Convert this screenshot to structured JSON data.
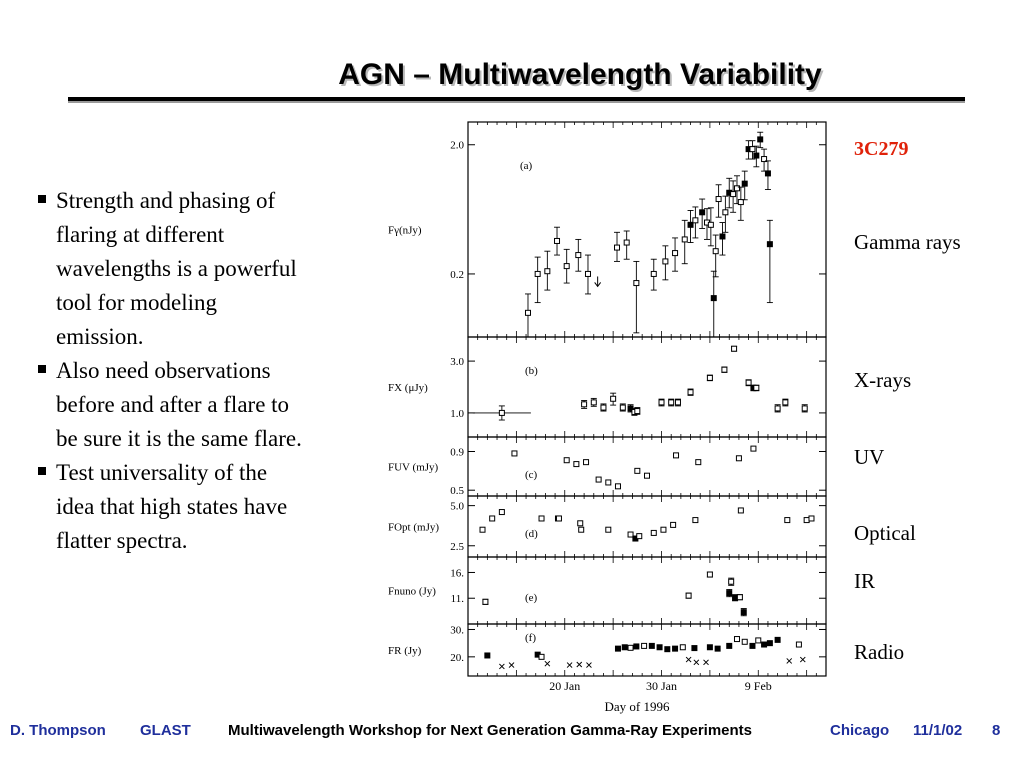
{
  "slide": {
    "title": "AGN – Multiwavelength Variability"
  },
  "bullets": [
    "Strength and phasing of flaring at different wavelengths is a powerful tool for modeling emission.",
    "Also need observations before and after a flare to be sure it is the same flare.",
    "Test universality of the idea that high states have flatter spectra."
  ],
  "side_labels": {
    "source": "3C279",
    "gamma": "Gamma rays",
    "xray": "X-rays",
    "uv": "UV",
    "optical": "Optical",
    "ir": "IR",
    "radio": "Radio"
  },
  "footer": {
    "author": "D. Thompson",
    "mission": "GLAST",
    "workshop": "Multiwavelength Workshop for Next Generation Gamma-Ray Experiments",
    "place": "Chicago",
    "date": "11/1/02",
    "page": "8"
  },
  "colors": {
    "source_label": "#e0220a",
    "footer_blue": "#1f2f9c",
    "title_shadow": "#b8b8b8"
  },
  "chart_data": {
    "type": "scatter",
    "xlabel": "Day of 1996",
    "x_range": [
      10,
      47
    ],
    "x_ticks": [
      {
        "x": 20,
        "label": "20 Jan"
      },
      {
        "x": 30,
        "label": "30 Jan"
      },
      {
        "x": 40,
        "label": "9 Feb"
      }
    ],
    "panels": [
      {
        "id": "a",
        "tag": "(a)",
        "ylabel": "Fγ(nJy)",
        "log": true,
        "ylim": [
          0.065,
          3.0
        ],
        "yticks": [
          {
            "v": 2.0,
            "label": "2.0"
          },
          {
            "v": 0.2,
            "label": "0.2"
          }
        ],
        "points": [
          {
            "x": 16.2,
            "y": 0.1,
            "lo": 0.065,
            "hi": 0.14,
            "f": false
          },
          {
            "x": 17.2,
            "y": 0.2,
            "lo": 0.12,
            "hi": 0.27,
            "f": false
          },
          {
            "x": 18.2,
            "y": 0.21,
            "lo": 0.15,
            "hi": 0.3,
            "f": false
          },
          {
            "x": 19.2,
            "y": 0.36,
            "lo": 0.28,
            "hi": 0.46,
            "f": false
          },
          {
            "x": 20.2,
            "y": 0.23,
            "lo": 0.17,
            "hi": 0.31,
            "f": false
          },
          {
            "x": 21.4,
            "y": 0.28,
            "lo": 0.21,
            "hi": 0.37,
            "f": false
          },
          {
            "x": 22.4,
            "y": 0.2,
            "lo": 0.14,
            "hi": 0.28,
            "f": false
          },
          {
            "x": 23.4,
            "y": 0.16,
            "ul": true,
            "f": false
          },
          {
            "x": 25.4,
            "y": 0.32,
            "lo": 0.25,
            "hi": 0.42,
            "f": false
          },
          {
            "x": 26.4,
            "y": 0.35,
            "lo": 0.26,
            "hi": 0.43,
            "f": false
          },
          {
            "x": 27.4,
            "y": 0.17,
            "lo": 0.07,
            "hi": 0.25,
            "f": false
          },
          {
            "x": 29.2,
            "y": 0.2,
            "lo": 0.15,
            "hi": 0.26,
            "f": false
          },
          {
            "x": 30.4,
            "y": 0.25,
            "lo": 0.18,
            "hi": 0.33,
            "f": false
          },
          {
            "x": 31.4,
            "y": 0.29,
            "lo": 0.21,
            "hi": 0.38,
            "f": false
          },
          {
            "x": 32.4,
            "y": 0.37,
            "lo": 0.24,
            "hi": 0.52,
            "f": false
          },
          {
            "x": 33.0,
            "y": 0.48,
            "lo": 0.35,
            "hi": 0.62,
            "f": true
          },
          {
            "x": 33.5,
            "y": 0.52,
            "lo": 0.38,
            "hi": 0.66,
            "f": false
          },
          {
            "x": 34.2,
            "y": 0.6,
            "lo": 0.45,
            "hi": 0.76,
            "f": true
          },
          {
            "x": 34.7,
            "y": 0.5,
            "lo": 0.37,
            "hi": 0.64,
            "f": false
          },
          {
            "x": 35.1,
            "y": 0.48,
            "lo": 0.33,
            "hi": 0.65,
            "f": false
          },
          {
            "x": 35.4,
            "y": 0.13,
            "lo": 0.065,
            "hi": 0.21,
            "f": true
          },
          {
            "x": 35.6,
            "y": 0.3,
            "lo": 0.19,
            "hi": 0.4,
            "f": false
          },
          {
            "x": 35.9,
            "y": 0.76,
            "lo": 0.55,
            "hi": 0.98,
            "f": false
          },
          {
            "x": 36.3,
            "y": 0.39,
            "lo": 0.28,
            "hi": 0.5,
            "f": true
          },
          {
            "x": 36.6,
            "y": 0.6,
            "lo": 0.42,
            "hi": 0.8,
            "f": false
          },
          {
            "x": 37.0,
            "y": 0.85,
            "lo": 0.65,
            "hi": 1.1,
            "f": true
          },
          {
            "x": 37.4,
            "y": 0.83,
            "lo": 0.6,
            "hi": 1.05,
            "f": false
          },
          {
            "x": 37.8,
            "y": 0.92,
            "lo": 0.7,
            "hi": 1.15,
            "f": false
          },
          {
            "x": 38.2,
            "y": 0.72,
            "lo": 0.52,
            "hi": 0.94,
            "f": false
          },
          {
            "x": 38.6,
            "y": 1.0,
            "lo": 0.75,
            "hi": 1.25,
            "f": true
          },
          {
            "x": 39.0,
            "y": 1.85,
            "lo": 1.55,
            "hi": 2.15,
            "f": true
          },
          {
            "x": 39.4,
            "y": 1.85,
            "lo": 1.55,
            "hi": 2.15,
            "f": false
          },
          {
            "x": 39.8,
            "y": 1.65,
            "lo": 1.35,
            "hi": 1.95,
            "f": true
          },
          {
            "x": 40.2,
            "y": 2.2,
            "lo": 1.9,
            "hi": 2.5,
            "f": true
          },
          {
            "x": 40.6,
            "y": 1.55,
            "lo": 1.25,
            "hi": 1.85,
            "f": false
          },
          {
            "x": 41.0,
            "y": 1.2,
            "lo": 0.9,
            "hi": 1.5,
            "f": true
          },
          {
            "x": 41.2,
            "y": 0.34,
            "lo": 0.12,
            "hi": 0.52,
            "f": true
          }
        ]
      },
      {
        "id": "b",
        "tag": "(b)",
        "ylabel": "FX (μJy)",
        "log": true,
        "ylim": [
          0.6,
          5.0
        ],
        "yticks": [
          {
            "v": 3.0,
            "label": "3.0"
          },
          {
            "v": 1.0,
            "label": "1.0"
          }
        ],
        "points": [
          {
            "x": 13.5,
            "y": 1.0,
            "lo": 0.86,
            "hi": 1.16,
            "xe": 3.0,
            "f": false
          },
          {
            "x": 22.0,
            "y": 1.2,
            "lo": 1.1,
            "hi": 1.3,
            "f": false
          },
          {
            "x": 23.0,
            "y": 1.25,
            "lo": 1.15,
            "hi": 1.36,
            "f": false
          },
          {
            "x": 24.0,
            "y": 1.12,
            "lo": 1.04,
            "hi": 1.21,
            "f": false
          },
          {
            "x": 25.0,
            "y": 1.35,
            "lo": 1.18,
            "hi": 1.52,
            "f": false
          },
          {
            "x": 26.0,
            "y": 1.12,
            "lo": 1.04,
            "hi": 1.21,
            "f": false
          },
          {
            "x": 26.8,
            "y": 1.1,
            "lo": 1.02,
            "hi": 1.19,
            "f": true
          },
          {
            "x": 27.2,
            "y": 1.02,
            "lo": 0.95,
            "hi": 1.1,
            "f": false
          },
          {
            "x": 27.5,
            "y": 1.04,
            "lo": 0.97,
            "hi": 1.12,
            "f": false
          },
          {
            "x": 30.0,
            "y": 1.25,
            "lo": 1.16,
            "hi": 1.34,
            "f": false
          },
          {
            "x": 31.0,
            "y": 1.25,
            "lo": 1.16,
            "hi": 1.34,
            "f": false
          },
          {
            "x": 31.7,
            "y": 1.25,
            "lo": 1.16,
            "hi": 1.34,
            "f": false
          },
          {
            "x": 33.0,
            "y": 1.55,
            "lo": 1.45,
            "hi": 1.66,
            "f": false
          },
          {
            "x": 35.0,
            "y": 2.1,
            "lo": 1.98,
            "hi": 2.23,
            "f": false
          },
          {
            "x": 36.5,
            "y": 2.5,
            "lo": 2.36,
            "hi": 2.65,
            "f": false
          },
          {
            "x": 37.5,
            "y": 3.9,
            "lo": 3.7,
            "hi": 4.1,
            "f": false
          },
          {
            "x": 39.0,
            "y": 1.9,
            "lo": 1.78,
            "hi": 2.02,
            "f": false
          },
          {
            "x": 39.5,
            "y": 1.7,
            "lo": 1.6,
            "hi": 1.8,
            "f": true
          },
          {
            "x": 39.8,
            "y": 1.7,
            "lo": 1.6,
            "hi": 1.8,
            "f": false
          },
          {
            "x": 42.0,
            "y": 1.1,
            "lo": 1.02,
            "hi": 1.19,
            "f": false
          },
          {
            "x": 42.8,
            "y": 1.25,
            "lo": 1.16,
            "hi": 1.34,
            "f": false
          },
          {
            "x": 44.8,
            "y": 1.1,
            "lo": 1.02,
            "hi": 1.19,
            "f": false
          }
        ]
      },
      {
        "id": "c",
        "tag": "(c)",
        "ylabel": "FUV (mJy)",
        "log": false,
        "ylim": [
          0.44,
          1.05
        ],
        "yticks": [
          {
            "v": 0.9,
            "label": "0.9"
          },
          {
            "v": 0.5,
            "label": "0.5"
          }
        ],
        "points": [
          {
            "x": 14.8,
            "y": 0.88,
            "f": false
          },
          {
            "x": 20.2,
            "y": 0.81,
            "f": false
          },
          {
            "x": 21.2,
            "y": 0.77,
            "f": false
          },
          {
            "x": 22.2,
            "y": 0.79,
            "f": false
          },
          {
            "x": 23.5,
            "y": 0.61,
            "f": false
          },
          {
            "x": 24.5,
            "y": 0.58,
            "f": false
          },
          {
            "x": 25.5,
            "y": 0.54,
            "f": false
          },
          {
            "x": 27.5,
            "y": 0.7,
            "f": false
          },
          {
            "x": 28.5,
            "y": 0.65,
            "f": false
          },
          {
            "x": 31.5,
            "y": 0.86,
            "f": false
          },
          {
            "x": 33.8,
            "y": 0.79,
            "f": false
          },
          {
            "x": 38.0,
            "y": 0.83,
            "f": false
          },
          {
            "x": 39.5,
            "y": 0.93,
            "f": false
          }
        ]
      },
      {
        "id": "d",
        "tag": "(d)",
        "ylabel": "FOpt (mJy)",
        "log": false,
        "ylim": [
          1.8,
          5.6
        ],
        "yticks": [
          {
            "v": 5.0,
            "label": "5.0"
          },
          {
            "v": 2.5,
            "label": "2.5"
          }
        ],
        "points": [
          {
            "x": 11.5,
            "y": 3.5,
            "f": false
          },
          {
            "x": 12.5,
            "y": 4.2,
            "f": false
          },
          {
            "x": 13.5,
            "y": 4.6,
            "f": false
          },
          {
            "x": 17.6,
            "y": 4.2,
            "f": false
          },
          {
            "x": 19.3,
            "y": 4.2,
            "f": true
          },
          {
            "x": 19.4,
            "y": 4.2,
            "f": false
          },
          {
            "x": 21.6,
            "y": 3.9,
            "f": false
          },
          {
            "x": 21.7,
            "y": 3.5,
            "f": false
          },
          {
            "x": 24.5,
            "y": 3.5,
            "f": false
          },
          {
            "x": 26.8,
            "y": 3.2,
            "f": false
          },
          {
            "x": 27.3,
            "y": 2.95,
            "f": true
          },
          {
            "x": 27.7,
            "y": 3.1,
            "f": false
          },
          {
            "x": 29.2,
            "y": 3.3,
            "f": false
          },
          {
            "x": 30.2,
            "y": 3.5,
            "f": false
          },
          {
            "x": 31.2,
            "y": 3.8,
            "f": false
          },
          {
            "x": 33.5,
            "y": 4.1,
            "f": false
          },
          {
            "x": 38.2,
            "y": 4.7,
            "f": false
          },
          {
            "x": 43.0,
            "y": 4.1,
            "f": false
          },
          {
            "x": 45.0,
            "y": 4.1,
            "f": false
          },
          {
            "x": 45.5,
            "y": 4.2,
            "f": false
          }
        ]
      },
      {
        "id": "e",
        "tag": "(e)",
        "ylabel": "Fnuno (Jy)",
        "log": false,
        "ylim": [
          6.0,
          19.0
        ],
        "yticks": [
          {
            "v": 16,
            "label": "16."
          },
          {
            "v": 11,
            "label": "11."
          }
        ],
        "points": [
          {
            "x": 11.8,
            "y": 10.3,
            "lo": 9.8,
            "hi": 10.8,
            "f": false
          },
          {
            "x": 32.8,
            "y": 11.5,
            "lo": 11.0,
            "hi": 12.0,
            "f": false
          },
          {
            "x": 35.0,
            "y": 15.6,
            "lo": 15.1,
            "hi": 16.1,
            "f": false
          },
          {
            "x": 37.0,
            "y": 12.0,
            "lo": 11.3,
            "hi": 12.7,
            "f": true
          },
          {
            "x": 37.2,
            "y": 14.2,
            "lo": 13.5,
            "hi": 14.9,
            "f": false
          },
          {
            "x": 37.6,
            "y": 11.1,
            "lo": 10.5,
            "hi": 11.7,
            "f": true
          },
          {
            "x": 38.1,
            "y": 11.2,
            "lo": 10.7,
            "hi": 11.7,
            "f": false
          },
          {
            "x": 38.5,
            "y": 8.3,
            "lo": 7.6,
            "hi": 9.0,
            "f": true
          }
        ]
      },
      {
        "id": "f",
        "tag": "(f)",
        "ylabel": "FR (Jy)",
        "log": false,
        "ylim": [
          13.0,
          32.0
        ],
        "yticks": [
          {
            "v": 30,
            "label": "30."
          },
          {
            "v": 20,
            "label": "20."
          }
        ],
        "points": [
          {
            "x": 12.0,
            "y": 20.5,
            "m": "fsq"
          },
          {
            "x": 13.5,
            "y": 16.5,
            "m": "x"
          },
          {
            "x": 14.5,
            "y": 17.0,
            "m": "x"
          },
          {
            "x": 17.2,
            "y": 20.8,
            "m": "fsq"
          },
          {
            "x": 17.6,
            "y": 20.0,
            "m": "sq"
          },
          {
            "x": 18.2,
            "y": 17.5,
            "m": "x"
          },
          {
            "x": 20.5,
            "y": 17.0,
            "m": "x"
          },
          {
            "x": 21.5,
            "y": 17.2,
            "m": "x"
          },
          {
            "x": 22.5,
            "y": 17.0,
            "m": "x"
          },
          {
            "x": 25.5,
            "y": 23.0,
            "m": "fsq"
          },
          {
            "x": 26.2,
            "y": 23.5,
            "m": "fsq"
          },
          {
            "x": 26.8,
            "y": 23.3,
            "m": "sq"
          },
          {
            "x": 27.4,
            "y": 23.8,
            "m": "fsq"
          },
          {
            "x": 28.2,
            "y": 24.0,
            "m": "sq"
          },
          {
            "x": 29.0,
            "y": 24.0,
            "m": "fsq"
          },
          {
            "x": 29.8,
            "y": 23.5,
            "m": "fsq"
          },
          {
            "x": 30.6,
            "y": 22.8,
            "m": "fsq"
          },
          {
            "x": 31.4,
            "y": 23.0,
            "m": "fsq"
          },
          {
            "x": 32.2,
            "y": 23.5,
            "m": "sq"
          },
          {
            "x": 32.8,
            "y": 19.0,
            "m": "x"
          },
          {
            "x": 33.4,
            "y": 23.2,
            "m": "fsq"
          },
          {
            "x": 33.6,
            "y": 18.0,
            "m": "x"
          },
          {
            "x": 34.6,
            "y": 18.0,
            "m": "x"
          },
          {
            "x": 35.0,
            "y": 23.5,
            "m": "fsq"
          },
          {
            "x": 35.8,
            "y": 23.0,
            "m": "fsq"
          },
          {
            "x": 37.0,
            "y": 24.0,
            "m": "fsq"
          },
          {
            "x": 37.8,
            "y": 26.5,
            "m": "sq"
          },
          {
            "x": 38.6,
            "y": 25.5,
            "m": "sq"
          },
          {
            "x": 39.4,
            "y": 24.0,
            "m": "fsq"
          },
          {
            "x": 40.0,
            "y": 26.0,
            "m": "sq"
          },
          {
            "x": 40.6,
            "y": 24.5,
            "m": "fsq"
          },
          {
            "x": 41.2,
            "y": 25.0,
            "m": "fsq"
          },
          {
            "x": 42.0,
            "y": 26.2,
            "m": "fsq"
          },
          {
            "x": 43.2,
            "y": 18.5,
            "m": "x"
          },
          {
            "x": 44.2,
            "y": 24.5,
            "m": "sq"
          },
          {
            "x": 44.6,
            "y": 19.0,
            "m": "x"
          }
        ]
      }
    ]
  }
}
